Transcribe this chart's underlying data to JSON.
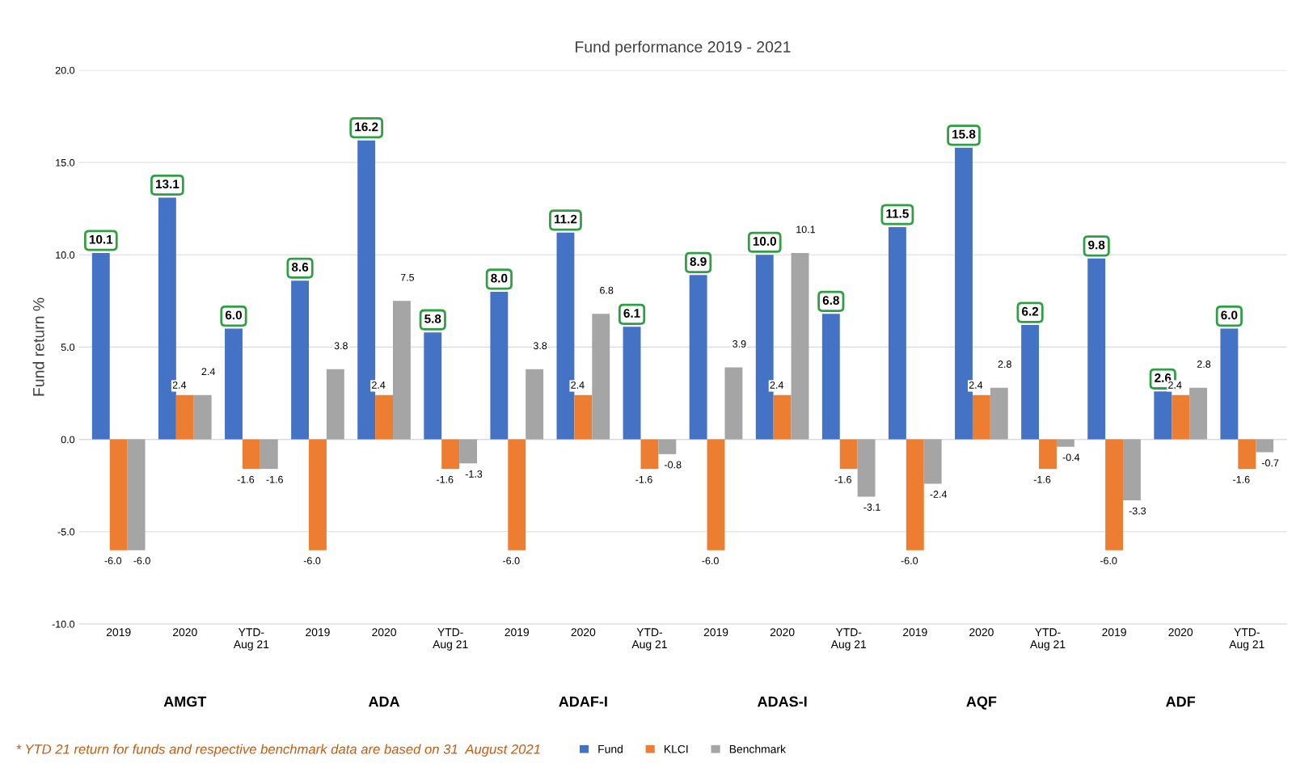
{
  "chart_data": {
    "type": "bar",
    "title": "Fund performance 2019 - 2021",
    "ylabel": "Fund return %",
    "categories": [
      "2019",
      "2020",
      "YTD-\nAug 21",
      "2019",
      "2020",
      "YTD-\nAug 21",
      "2019",
      "2020",
      "YTD-\nAug 21",
      "2019",
      "2020",
      "YTD-\nAug 21",
      "2019",
      "2020",
      "YTD-\nAug 21",
      "2019",
      "2020",
      "YTD-\nAug 21"
    ],
    "series": [
      {
        "name": "Fund",
        "color": "#4472c4",
        "values": [
          10.1,
          13.1,
          6.0,
          8.6,
          16.2,
          5.8,
          8.0,
          11.2,
          6.1,
          8.9,
          10.0,
          6.8,
          11.5,
          15.8,
          6.2,
          9.8,
          2.6,
          6.0
        ],
        "value_labels": [
          "10.1",
          "13.1",
          "6.0",
          "8.6",
          "16.2",
          "5.8",
          "8.0",
          "11.2",
          "6.1",
          "8.9",
          "10.0",
          "6.8",
          "11.5",
          "15.8",
          "6.2",
          "9.8",
          "2.6",
          "6.0"
        ]
      },
      {
        "name": "KLCI",
        "color": "#ed7d31",
        "values": [
          -6.0,
          2.4,
          -1.6,
          -6.0,
          2.4,
          -1.6,
          -6.0,
          2.4,
          -1.6,
          -6.0,
          2.4,
          -1.6,
          -6.0,
          2.4,
          -1.6,
          -6.0,
          2.4,
          -1.6
        ],
        "value_labels": [
          "-6.0",
          "2.4",
          "-1.6",
          "-6.0",
          "2.4",
          "-1.6",
          "-6.0",
          "2.4",
          "-1.6",
          "-6.0",
          "2.4",
          "-1.6",
          "-6.0",
          "2.4",
          "-1.6",
          "-6.0",
          "2.4",
          "-1.6"
        ]
      },
      {
        "name": "Benchmark",
        "color": "#a5a5a5",
        "values": [
          -6.0,
          2.4,
          -1.6,
          3.8,
          7.5,
          -1.3,
          3.8,
          6.8,
          -0.8,
          3.9,
          10.1,
          -3.1,
          -2.4,
          2.8,
          -0.4,
          -3.3,
          2.8,
          -0.7
        ],
        "value_labels": [
          "-6.0",
          "2.4",
          "-1.6",
          "3.8",
          "7.5",
          "-1.3",
          "3.8",
          "6.8",
          "-0.8",
          "3.9",
          "10.1",
          "-3.1",
          "-2.4",
          "2.8",
          "-0.4",
          "-3.3",
          "2.8",
          "-0.7"
        ]
      }
    ],
    "ylim": [
      -10,
      20
    ],
    "yticks": [
      {
        "value": -10,
        "label": "-10.0"
      },
      {
        "value": -5,
        "label": "-5.0"
      },
      {
        "value": 0,
        "label": "0.0"
      },
      {
        "value": 5,
        "label": "5.0"
      },
      {
        "value": 10,
        "label": "10.0"
      },
      {
        "value": 15,
        "label": "15.0"
      },
      {
        "value": 20,
        "label": "20.0"
      }
    ],
    "grid": "y",
    "legend": "bottom",
    "annotations": [
      "AMGT",
      "ADA",
      "ADAF-I",
      "ADAS-I",
      "AQF",
      "ADF",
      "* YTD 21 return for funds and respective benchmark data are based on 31  August 2021"
    ]
  }
}
